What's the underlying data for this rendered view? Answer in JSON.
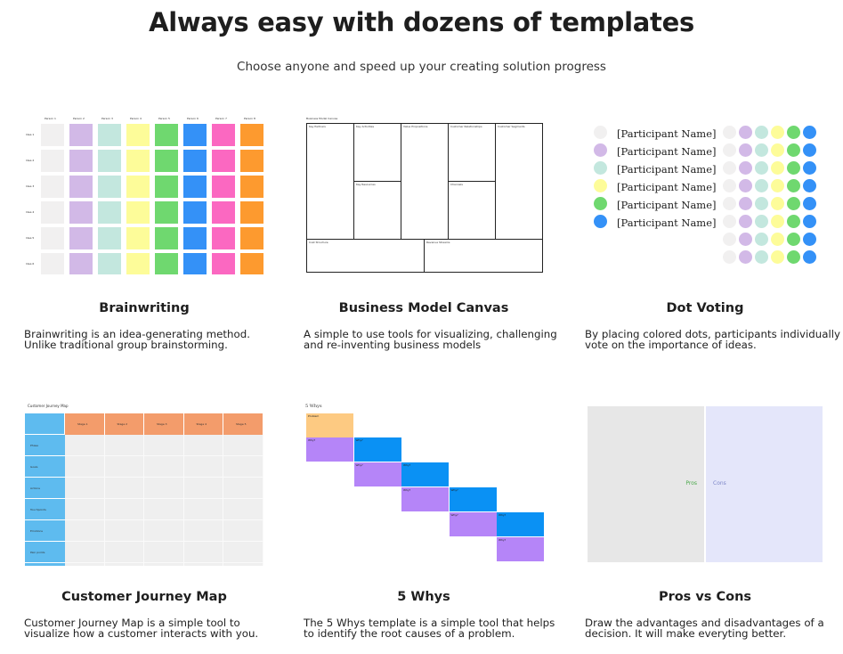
{
  "header": {
    "title": "Always easy with dozens of templates",
    "subtitle": "Choose anyone and speed up your creating solution progress"
  },
  "palette": {
    "grey": "#f1f0f0",
    "lilac": "#d2b9e7",
    "mint": "#c3e7de",
    "yellow": "#fdfc99",
    "green": "#6fd86f",
    "blue": "#3491f7",
    "pink": "#fb68c1",
    "orange": "#fd9a2f"
  },
  "templates": [
    {
      "name": "Brainwriting",
      "description_lines": [
        "Brainwriting is an idea-generating method.",
        "Unlike traditional group brainstorming."
      ]
    },
    {
      "name": "Business Model Canvas",
      "description_lines": [
        "A simple to use tools for visualizing, challenging",
        "and re-inventing business models"
      ]
    },
    {
      "name": "Dot Voting",
      "description_lines": [
        "By placing colored dots, participants individually",
        "vote on the importance of ideas."
      ]
    },
    {
      "name": "Customer Journey Map",
      "description_lines": [
        "Customer Journey Map is a simple tool to",
        "visualize how a customer interacts with you."
      ]
    },
    {
      "name": "5 Whys",
      "description_lines": [
        "The 5 Whys template is a simple tool that helps",
        "to identify the root causes of a problem."
      ]
    },
    {
      "name": "Pros vs Cons",
      "description_lines": [
        "Draw the advantages and disadvantages of a",
        "decision. It will make everyting better."
      ]
    }
  ],
  "brainwriting_preview": {
    "columns": [
      "Person 1",
      "Person 2",
      "Person 3",
      "Person 4",
      "Person 5",
      "Person 6",
      "Person 7",
      "Person 8"
    ],
    "rows": [
      "Idea 1",
      "Idea 2",
      "Idea 3",
      "Idea 4",
      "Idea 5",
      "Idea 6"
    ],
    "column_colors": [
      "#f1f0f0",
      "#d2b9e7",
      "#c3e7de",
      "#fdfc99",
      "#6fd86f",
      "#3491f7",
      "#fb68c1",
      "#fd9a2f"
    ]
  },
  "bmc_preview": {
    "title": "Business Model Canvas",
    "boxes": {
      "key_partners": "Key Partners",
      "key_activities": "Key Activities",
      "value_propositions": "Value Propositions",
      "customer_relationships": "Customer Relationships",
      "customer_segments": "Customer Segments",
      "key_resources": "Key Resources",
      "channels": "Channels",
      "cost_structure": "Cost Structure",
      "revenue_streams": "Revenue Streams"
    }
  },
  "dot_voting_preview": {
    "participant_label": "[Participant Name]",
    "participants": [
      {
        "color": "#f1f0f0"
      },
      {
        "color": "#d2b9e7"
      },
      {
        "color": "#c3e7de"
      },
      {
        "color": "#fdfc99"
      },
      {
        "color": "#6fd86f"
      },
      {
        "color": "#3491f7"
      }
    ],
    "dot_columns": [
      "#f1f0f0",
      "#d2b9e7",
      "#c3e7de",
      "#fdfc99",
      "#6fd86f",
      "#3491f7"
    ],
    "dot_rows": 8
  },
  "cjm_preview": {
    "title": "Customer Journey Map",
    "header_color": "#f39c6b",
    "side_color": "#5ebbef",
    "stages": [
      "Stage 1",
      "Stage 2",
      "Stage 3",
      "Stage 4",
      "Stage 5"
    ],
    "rows": [
      "Phase",
      "Goals",
      "Actions",
      "Touchpoints",
      "Emotions",
      "Pain points",
      "Ideas"
    ]
  },
  "whys_preview": {
    "title": "5 Whys",
    "problem_label": "Problem",
    "why_label": "Why?",
    "colors": {
      "problem": "#fdca82",
      "purple": "#b585f8",
      "blue": "#0a91f4"
    }
  },
  "pros_cons_preview": {
    "pros_label": "Pros",
    "cons_label": "Cons",
    "colors": {
      "pros_bg": "#e7e7e7",
      "cons_bg": "#e4e6fa",
      "pros_text": "#4aa84a",
      "cons_text": "#7d86c8"
    }
  }
}
